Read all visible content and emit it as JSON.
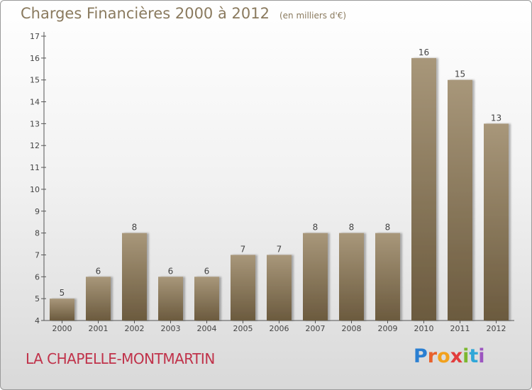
{
  "header": {
    "title": "Charges Financières 2000 à 2012",
    "subtitle": "(en milliers d'€)"
  },
  "footer": {
    "commune": "LA CHAPELLE-MONTMARTIN",
    "logo_letters": [
      "P",
      "r",
      "o",
      "x",
      "i",
      "t",
      "i"
    ],
    "logo_colors": [
      "#2a7fd2",
      "#e8612c",
      "#f2a11d",
      "#e23c3c",
      "#7cb82f",
      "#2fa7d8",
      "#9c55c0"
    ]
  },
  "colors": {
    "bar_top": "#a8977a",
    "bar_bottom": "#6b5a3e",
    "text": "#8a7a5e",
    "commune": "#c0324a"
  },
  "chart_data": {
    "type": "bar",
    "title": "Charges Financières 2000 à 2012",
    "subtitle": "(en milliers d'€)",
    "categories": [
      "2000",
      "2001",
      "2002",
      "2003",
      "2004",
      "2005",
      "2006",
      "2007",
      "2008",
      "2009",
      "2010",
      "2011",
      "2012"
    ],
    "values": [
      5,
      6,
      8,
      6,
      6,
      7,
      7,
      8,
      8,
      8,
      16,
      15,
      13
    ],
    "ylim": [
      4,
      17
    ],
    "yticks": [
      4,
      5,
      6,
      7,
      8,
      9,
      10,
      11,
      12,
      13,
      14,
      15,
      16,
      17
    ],
    "xlabel": "",
    "ylabel": "",
    "grid": false,
    "data_labels": true
  }
}
